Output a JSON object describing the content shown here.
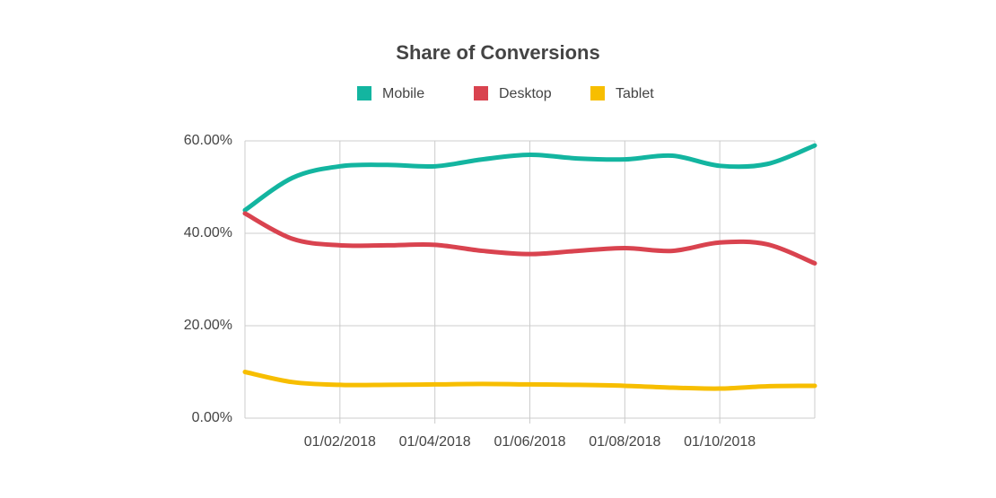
{
  "chart_data": {
    "type": "line",
    "title": "Share of Conversions",
    "categories": [
      null,
      null,
      "01/02/2018",
      null,
      "01/04/2018",
      null,
      "01/06/2018",
      null,
      "01/08/2018",
      null,
      "01/10/2018",
      null,
      null
    ],
    "series": [
      {
        "name": "Mobile",
        "color": "#13b5a0",
        "values": [
          45,
          52,
          54.5,
          54.8,
          54.5,
          56,
          57,
          56.2,
          56,
          56.8,
          54.6,
          55,
          59
        ]
      },
      {
        "name": "Desktop",
        "color": "#d9434f",
        "values": [
          44.3,
          38.8,
          37.4,
          37.4,
          37.5,
          36.2,
          35.5,
          36.2,
          36.8,
          36.2,
          38,
          37.6,
          33.5
        ]
      },
      {
        "name": "Tablet",
        "color": "#f7be00",
        "values": [
          10,
          7.8,
          7.2,
          7.2,
          7.3,
          7.4,
          7.3,
          7.2,
          7.0,
          6.6,
          6.4,
          6.9,
          7.0
        ]
      }
    ],
    "ylim": [
      0,
      60
    ],
    "yticks": [
      {
        "value": 0,
        "label": "0.00%"
      },
      {
        "value": 20,
        "label": "20.00%"
      },
      {
        "value": 40,
        "label": "40.00%"
      },
      {
        "value": 60,
        "label": "60.00%"
      }
    ],
    "grid": true
  }
}
